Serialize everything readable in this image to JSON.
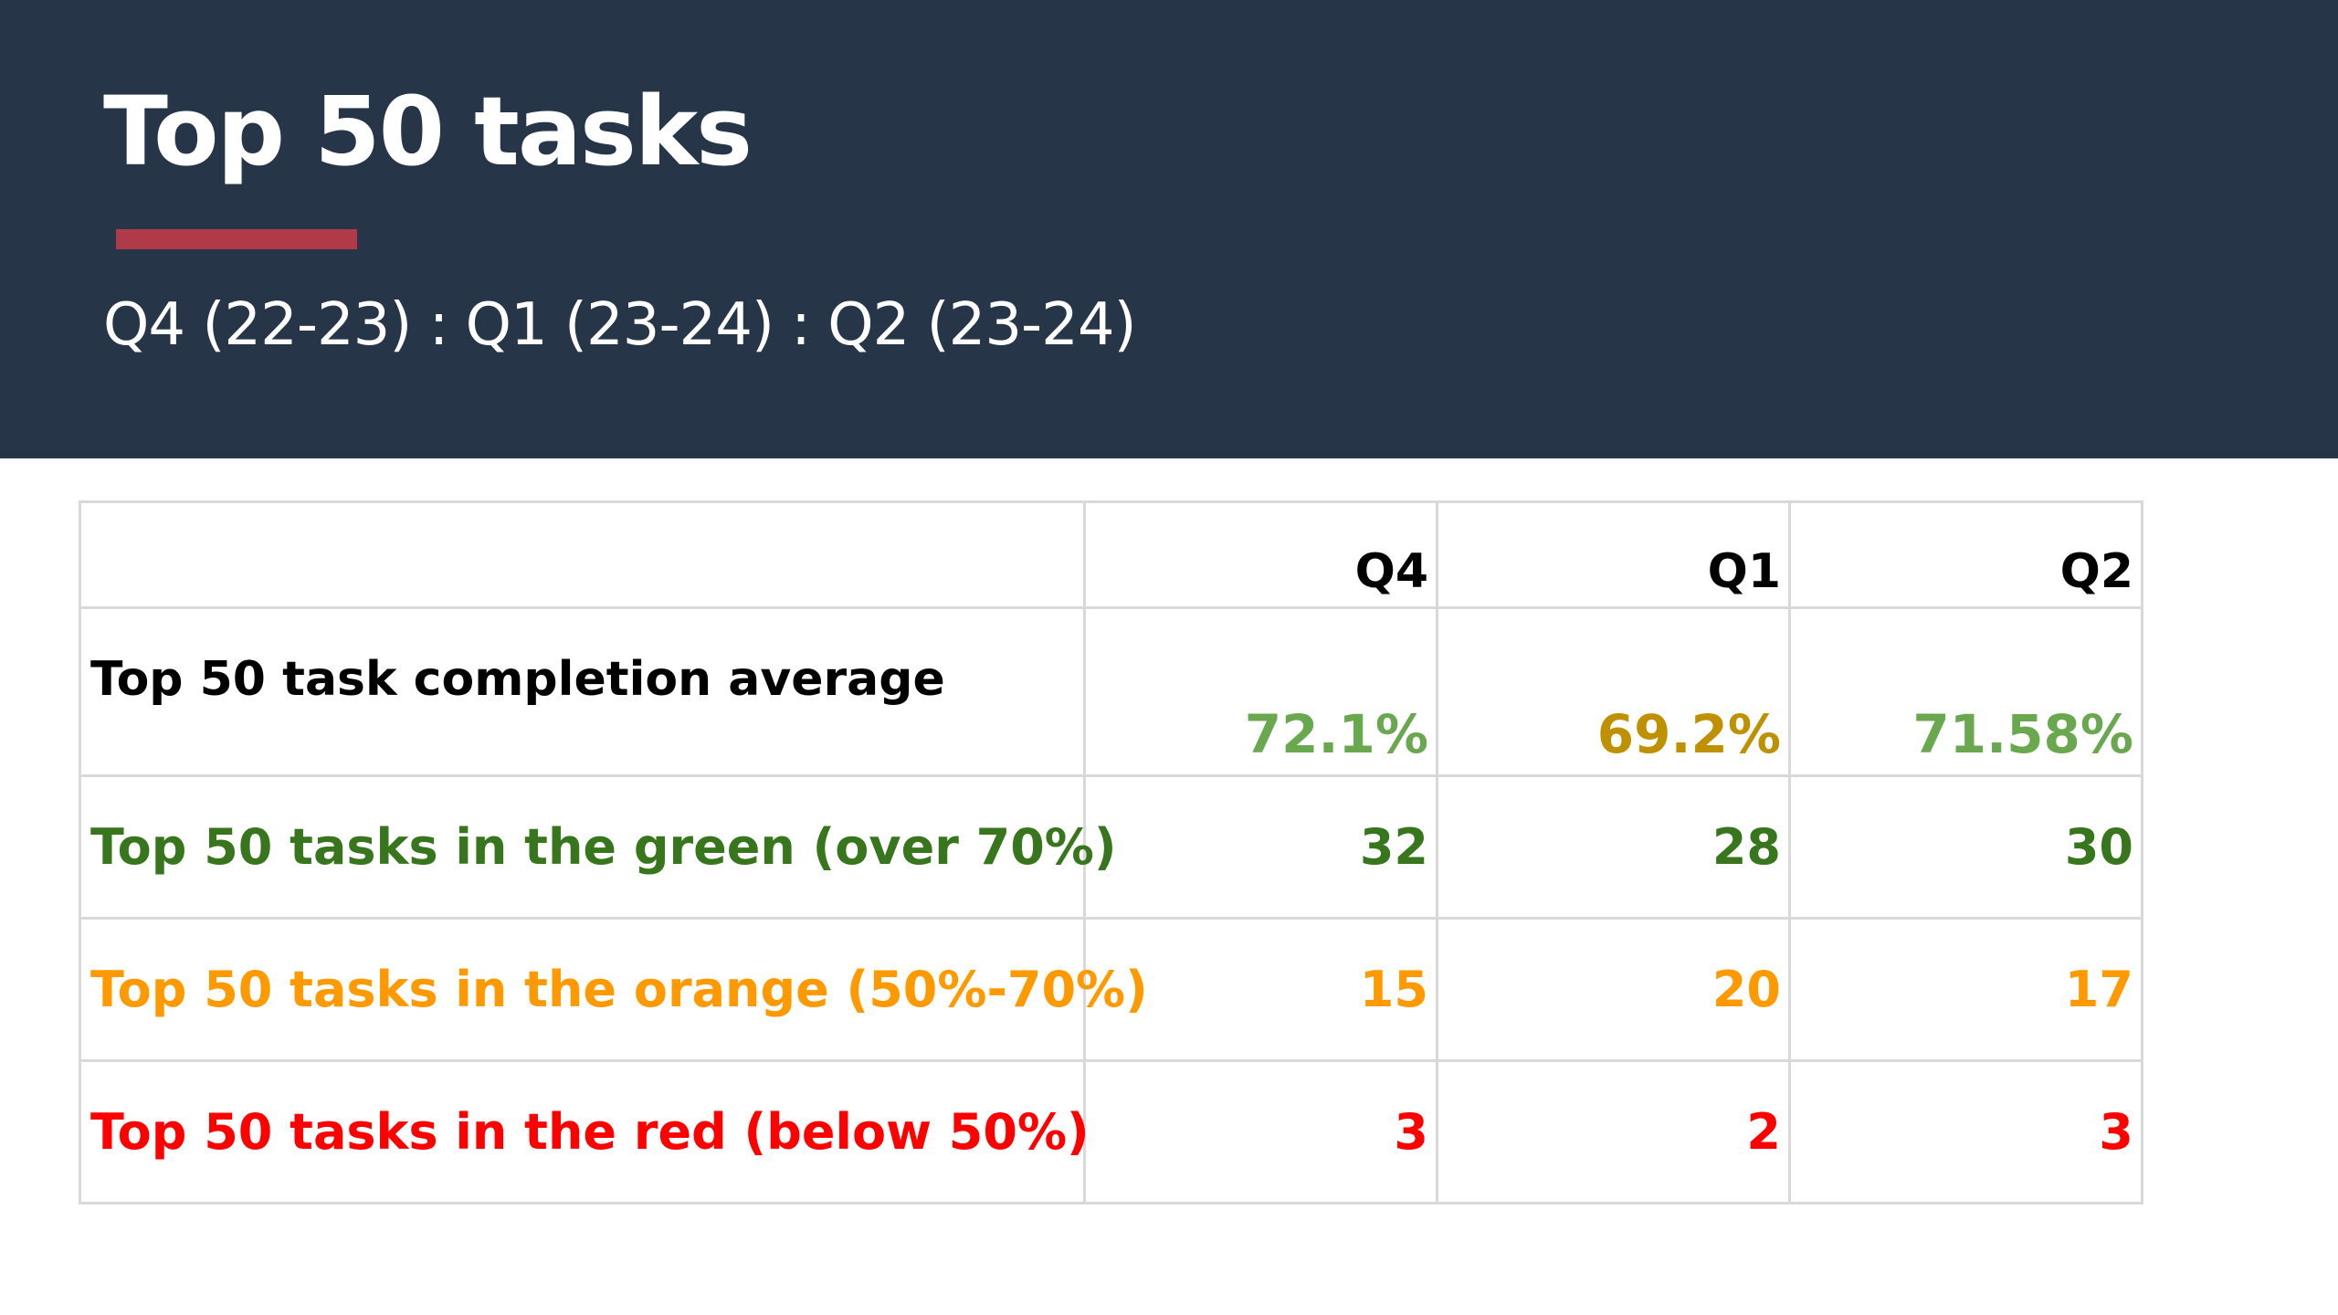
{
  "header": {
    "title": "Top 50 tasks",
    "subtitle": "Q4 (22-23) : Q1 (23-24) : Q2 (23-24)"
  },
  "colors": {
    "header_bg": "#263547",
    "accent": "#b03a48",
    "avg_green": "#6aa84f",
    "avg_amber": "#bf9000",
    "green": "#38761d",
    "orange": "#ff9900",
    "red": "#ff0000"
  },
  "table": {
    "columns": [
      "Q4",
      "Q1",
      "Q2"
    ],
    "rows": [
      {
        "label": "Top 50 task completion average",
        "values": [
          "72.1%",
          "69.2%",
          "71.58%"
        ]
      },
      {
        "label": "Top 50 tasks in the green (over 70%)",
        "values": [
          "32",
          "28",
          "30"
        ]
      },
      {
        "label": "Top 50 tasks in the orange (50%-70%)",
        "values": [
          "15",
          "20",
          "17"
        ]
      },
      {
        "label": "Top 50 tasks in the red (below 50%)",
        "values": [
          "3",
          "2",
          "3"
        ]
      }
    ]
  }
}
